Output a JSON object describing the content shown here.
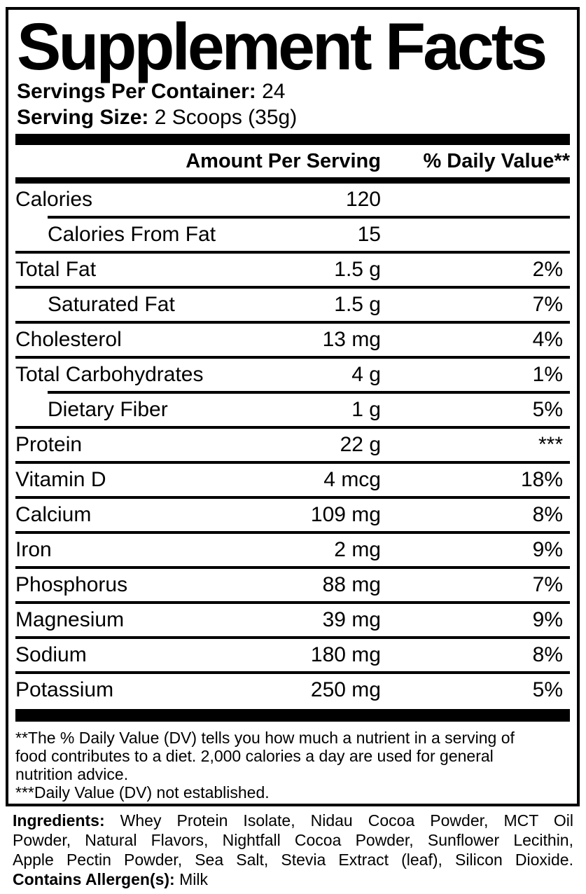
{
  "title": "Supplement Facts",
  "serving_info": {
    "servings_per_container_label": "Servings Per Container:",
    "servings_per_container_value": " 24",
    "serving_size_label": "Serving Size:",
    "serving_size_value": " 2 Scoops (35g)"
  },
  "table": {
    "header_amount": "Amount Per Serving",
    "header_dv": "% Daily Value**",
    "rows": [
      {
        "label": "Calories",
        "amount": "120",
        "dv": "",
        "indent": false,
        "divider_above": "none"
      },
      {
        "label": "Calories From Fat",
        "amount": "15",
        "dv": "",
        "indent": true,
        "divider_above": "indent"
      },
      {
        "label": "Total Fat",
        "amount": "1.5 g",
        "dv": "2%",
        "indent": false,
        "divider_above": "full"
      },
      {
        "label": "Saturated Fat",
        "amount": "1.5 g",
        "dv": "7%",
        "indent": true,
        "divider_above": "full"
      },
      {
        "label": "Cholesterol",
        "amount": "13 mg",
        "dv": "4%",
        "indent": false,
        "divider_above": "full"
      },
      {
        "label": "Total Carbohydrates",
        "amount": "4 g",
        "dv": "1%",
        "indent": false,
        "divider_above": "full"
      },
      {
        "label": "Dietary Fiber",
        "amount": "1 g",
        "dv": "5%",
        "indent": true,
        "divider_above": "indent"
      },
      {
        "label": "Protein",
        "amount": "22 g",
        "dv": "***",
        "indent": false,
        "divider_above": "full"
      },
      {
        "label": "Vitamin D",
        "amount": "4 mcg",
        "dv": "18%",
        "indent": false,
        "divider_above": "full"
      },
      {
        "label": "Calcium",
        "amount": "109 mg",
        "dv": "8%",
        "indent": false,
        "divider_above": "full"
      },
      {
        "label": "Iron",
        "amount": "2 mg",
        "dv": "9%",
        "indent": false,
        "divider_above": "full"
      },
      {
        "label": "Phosphorus",
        "amount": "88 mg",
        "dv": "7%",
        "indent": false,
        "divider_above": "full"
      },
      {
        "label": "Magnesium",
        "amount": "39 mg",
        "dv": "9%",
        "indent": false,
        "divider_above": "full"
      },
      {
        "label": "Sodium",
        "amount": "180 mg",
        "dv": "8%",
        "indent": false,
        "divider_above": "full"
      },
      {
        "label": "Potassium",
        "amount": "250 mg",
        "dv": "5%",
        "indent": false,
        "divider_above": "full"
      }
    ]
  },
  "footnote": {
    "lines": [
      "**The % Daily Value (DV) tells you how much a nutrient in a serving of",
      "food contributes to a diet. 2,000 calories a day are used for general",
      "nutrition advice.",
      "***Daily Value (DV) not established."
    ]
  },
  "ingredients": {
    "label": "Ingredients:",
    "line1_text": " Whey Protein Isolate, Nidau Cocoa Powder, MCT Oil",
    "line2": "Powder, Natural Flavors, Nightfall Cocoa Powder, Sunflower Lecithin,",
    "line3": "Apple Pectin Powder, Sea Salt, Stevia Extract (leaf), Silicon Dioxide.",
    "allergen_label": "Contains Allergen(s):",
    "allergen_value": " Milk"
  },
  "colors": {
    "text": "#000000",
    "background": "#ffffff"
  }
}
